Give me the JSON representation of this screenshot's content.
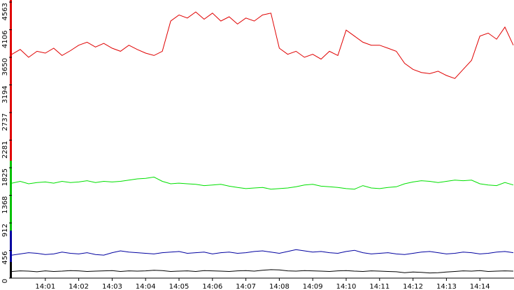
{
  "chart_data": {
    "type": "line",
    "categories": [
      null,
      null,
      null,
      null,
      "14:01",
      null,
      null,
      null,
      "14:02",
      null,
      null,
      null,
      "14:03",
      null,
      null,
      null,
      "14:04",
      null,
      null,
      null,
      "14:05",
      null,
      null,
      null,
      "14:06",
      null,
      null,
      null,
      "14:07",
      null,
      null,
      null,
      "14:08",
      null,
      null,
      null,
      "14:09",
      null,
      null,
      null,
      "14:10",
      null,
      null,
      null,
      "14:11",
      null,
      null,
      null,
      "14:12",
      null,
      null,
      null,
      "14:13",
      null,
      null,
      null,
      "14:14",
      null,
      null,
      null,
      null
    ],
    "ylim": [
      0,
      4563
    ],
    "yticks": [
      0,
      456,
      912,
      1368,
      1825,
      2281,
      2737,
      3194,
      3650,
      4106,
      4563
    ],
    "series": [
      {
        "color": "#e00000",
        "values": [
          3700,
          3780,
          3650,
          3750,
          3720,
          3800,
          3680,
          3760,
          3850,
          3900,
          3820,
          3880,
          3800,
          3750,
          3850,
          3780,
          3720,
          3680,
          3750,
          4250,
          4350,
          4300,
          4400,
          4280,
          4380,
          4250,
          4320,
          4200,
          4300,
          4250,
          4350,
          4380,
          3800,
          3700,
          3750,
          3650,
          3700,
          3620,
          3750,
          3680,
          4100,
          4000,
          3900,
          3850,
          3850,
          3800,
          3750,
          3550,
          3450,
          3400,
          3380,
          3420,
          3350,
          3300,
          3450,
          3600,
          4000,
          4050,
          3950,
          4150,
          3850
        ]
      },
      {
        "color": "#00e000",
        "values": [
          1570,
          1600,
          1560,
          1580,
          1590,
          1570,
          1600,
          1580,
          1590,
          1610,
          1580,
          1600,
          1590,
          1600,
          1620,
          1640,
          1650,
          1670,
          1600,
          1560,
          1570,
          1560,
          1550,
          1530,
          1540,
          1550,
          1520,
          1500,
          1480,
          1490,
          1500,
          1470,
          1480,
          1490,
          1510,
          1540,
          1550,
          1520,
          1510,
          1500,
          1480,
          1470,
          1530,
          1490,
          1480,
          1500,
          1510,
          1560,
          1590,
          1610,
          1600,
          1580,
          1600,
          1620,
          1610,
          1620,
          1560,
          1540,
          1530,
          1580,
          1540
        ]
      },
      {
        "color": "#0000a0",
        "values": [
          380,
          400,
          420,
          410,
          390,
          400,
          430,
          410,
          400,
          420,
          390,
          380,
          420,
          450,
          430,
          420,
          410,
          400,
          420,
          430,
          440,
          410,
          420,
          430,
          400,
          420,
          430,
          410,
          420,
          440,
          450,
          430,
          410,
          440,
          470,
          450,
          430,
          440,
          420,
          410,
          440,
          460,
          420,
          400,
          410,
          420,
          400,
          390,
          410,
          430,
          440,
          420,
          400,
          410,
          430,
          420,
          400,
          410,
          430,
          440,
          420
        ]
      },
      {
        "color": "#000000",
        "values": [
          110,
          120,
          115,
          105,
          120,
          110,
          115,
          125,
          120,
          110,
          115,
          120,
          125,
          110,
          120,
          115,
          120,
          130,
          125,
          110,
          115,
          120,
          110,
          125,
          120,
          115,
          110,
          120,
          125,
          115,
          130,
          140,
          135,
          120,
          115,
          125,
          120,
          115,
          110,
          120,
          125,
          115,
          110,
          120,
          115,
          110,
          105,
          90,
          100,
          95,
          85,
          90,
          100,
          110,
          120,
          115,
          125,
          110,
          115,
          120,
          115
        ]
      }
    ]
  }
}
